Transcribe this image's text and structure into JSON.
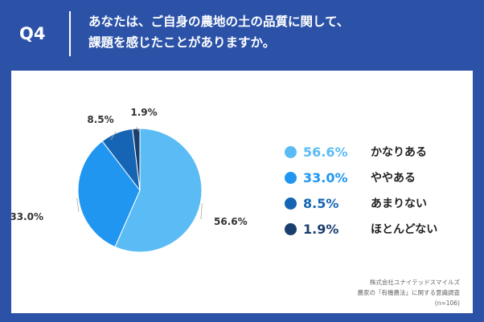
{
  "header": {
    "question_number": "Q4",
    "question_line1": "あなたは、ご自身の農地の土の品質に関して、",
    "question_line2": "課題を感じたことがありますか。"
  },
  "chart_data": {
    "type": "pie",
    "start_angle_deg": 0,
    "direction": "clockwise",
    "slices": [
      {
        "label": "かなりある",
        "value": 56.6,
        "value_label": "56.6%",
        "color": "#5bbcf5"
      },
      {
        "label": "ややある",
        "value": 33.0,
        "value_label": "33.0%",
        "color": "#2196f0"
      },
      {
        "label": "あまりない",
        "value": 8.5,
        "value_label": "8.5%",
        "color": "#1565b4"
      },
      {
        "label": "ほとんどない",
        "value": 1.9,
        "value_label": "1.9%",
        "color": "#1a3e6e"
      }
    ]
  },
  "footer": {
    "line1": "株式会社ユナイテッドスマイルズ",
    "line2": "農家の「有機農法」に関する意識調査",
    "line3": "(n=106)"
  }
}
